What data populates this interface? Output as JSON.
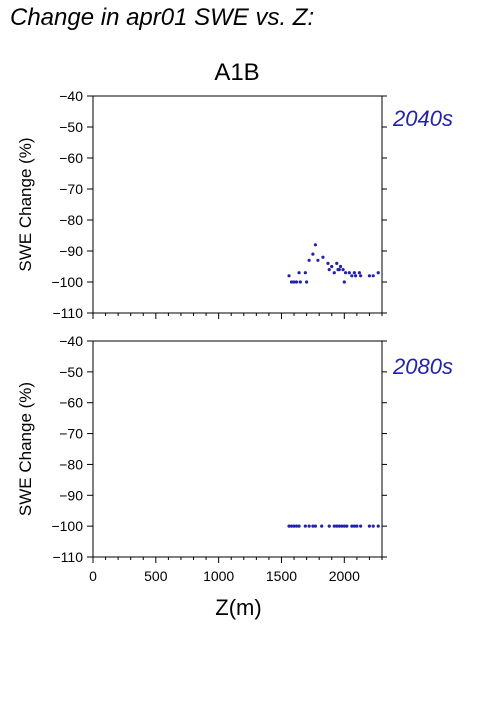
{
  "page_title": "Change in apr01 SWE vs. Z:",
  "scenario_label": "A1B",
  "colors": {
    "accent": "#2222aa",
    "axis": "#000000"
  },
  "chart_data": [
    {
      "type": "scatter",
      "period_label": "2040s",
      "xlabel": "",
      "ylabel": "SWE Change (%)",
      "xlim": [
        0,
        2300
      ],
      "ylim": [
        -110,
        -40
      ],
      "yticks": [
        -40,
        -50,
        -60,
        -70,
        -80,
        -90,
        -100,
        -110
      ],
      "xticks": [],
      "points": [
        {
          "x": 1560,
          "y": -98
        },
        {
          "x": 1580,
          "y": -100
        },
        {
          "x": 1600,
          "y": -100
        },
        {
          "x": 1620,
          "y": -100
        },
        {
          "x": 1640,
          "y": -97
        },
        {
          "x": 1650,
          "y": -100
        },
        {
          "x": 1690,
          "y": -97
        },
        {
          "x": 1700,
          "y": -100
        },
        {
          "x": 1720,
          "y": -93
        },
        {
          "x": 1750,
          "y": -91
        },
        {
          "x": 1770,
          "y": -88
        },
        {
          "x": 1790,
          "y": -93
        },
        {
          "x": 1830,
          "y": -92
        },
        {
          "x": 1870,
          "y": -94
        },
        {
          "x": 1880,
          "y": -96
        },
        {
          "x": 1900,
          "y": -95
        },
        {
          "x": 1920,
          "y": -97
        },
        {
          "x": 1940,
          "y": -94
        },
        {
          "x": 1950,
          "y": -96
        },
        {
          "x": 1960,
          "y": -96
        },
        {
          "x": 1970,
          "y": -95
        },
        {
          "x": 1990,
          "y": -96
        },
        {
          "x": 2000,
          "y": -100
        },
        {
          "x": 2010,
          "y": -97
        },
        {
          "x": 2040,
          "y": -97
        },
        {
          "x": 2060,
          "y": -98
        },
        {
          "x": 2080,
          "y": -97
        },
        {
          "x": 2090,
          "y": -98
        },
        {
          "x": 2120,
          "y": -97
        },
        {
          "x": 2130,
          "y": -98
        },
        {
          "x": 2200,
          "y": -98
        },
        {
          "x": 2230,
          "y": -98
        },
        {
          "x": 2270,
          "y": -97
        }
      ]
    },
    {
      "type": "scatter",
      "period_label": "2080s",
      "xlabel": "Z(m)",
      "ylabel": "SWE Change (%)",
      "xlim": [
        0,
        2300
      ],
      "ylim": [
        -110,
        -40
      ],
      "yticks": [
        -40,
        -50,
        -60,
        -70,
        -80,
        -90,
        -100,
        -110
      ],
      "xticks": [
        0,
        500,
        1000,
        1500,
        2000
      ],
      "points": [
        {
          "x": 1560,
          "y": -100
        },
        {
          "x": 1580,
          "y": -100
        },
        {
          "x": 1600,
          "y": -100
        },
        {
          "x": 1620,
          "y": -100
        },
        {
          "x": 1640,
          "y": -100
        },
        {
          "x": 1690,
          "y": -100
        },
        {
          "x": 1720,
          "y": -100
        },
        {
          "x": 1750,
          "y": -100
        },
        {
          "x": 1770,
          "y": -100
        },
        {
          "x": 1820,
          "y": -100
        },
        {
          "x": 1880,
          "y": -100
        },
        {
          "x": 1920,
          "y": -100
        },
        {
          "x": 1940,
          "y": -100
        },
        {
          "x": 1960,
          "y": -100
        },
        {
          "x": 1980,
          "y": -100
        },
        {
          "x": 2000,
          "y": -100
        },
        {
          "x": 2020,
          "y": -100
        },
        {
          "x": 2060,
          "y": -100
        },
        {
          "x": 2080,
          "y": -100
        },
        {
          "x": 2100,
          "y": -100
        },
        {
          "x": 2130,
          "y": -100
        },
        {
          "x": 2200,
          "y": -100
        },
        {
          "x": 2230,
          "y": -100
        },
        {
          "x": 2270,
          "y": -100
        }
      ]
    }
  ]
}
